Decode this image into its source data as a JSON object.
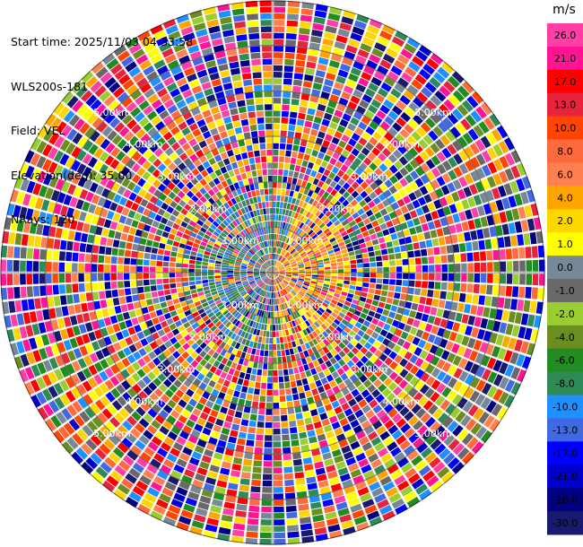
{
  "header": {
    "start_time": "Start time: 2025/11/03 04:33:58",
    "instrument": "WLS200s-181",
    "field": "Field: VEL",
    "elevation": "Elevation(deg): 35.00",
    "nrays": "NRays: 120"
  },
  "chart_data": {
    "type": "heatmap",
    "projection": "polar-ppi",
    "field": "VEL",
    "n_rays": 120,
    "max_range_km": 6.0,
    "range_rings_km": [
      1.0,
      2.0,
      3.0,
      4.0,
      5.0,
      6.0
    ],
    "ring_labels": [
      "1.00km",
      "2.00km",
      "3.00km",
      "4.00km",
      "5.00km",
      "6.00km"
    ],
    "colorbar": {
      "unit": "m/s",
      "ticks": [
        "26.0",
        "21.0",
        "17.0",
        "13.0",
        "10.0",
        "8.0",
        "6.0",
        "4.0",
        "2.0",
        "1.0",
        "0.0",
        "-1.0",
        "-2.0",
        "-4.0",
        "-6.0",
        "-8.0",
        "-10.0",
        "-13.0",
        "-17.0",
        "-21.0",
        "-26.0",
        "-30.0"
      ],
      "colors": [
        "#ff3fa6",
        "#ff1493",
        "#ff0000",
        "#e8243c",
        "#ff4500",
        "#ff6a3d",
        "#ff7f50",
        "#ffa500",
        "#ffd700",
        "#ffff00",
        "#778899",
        "#696969",
        "#9acd32",
        "#6b8e23",
        "#228b22",
        "#2e8b57",
        "#1e90ff",
        "#4169e1",
        "#0000ff",
        "#0000cd",
        "#000080",
        "#191970"
      ]
    }
  }
}
